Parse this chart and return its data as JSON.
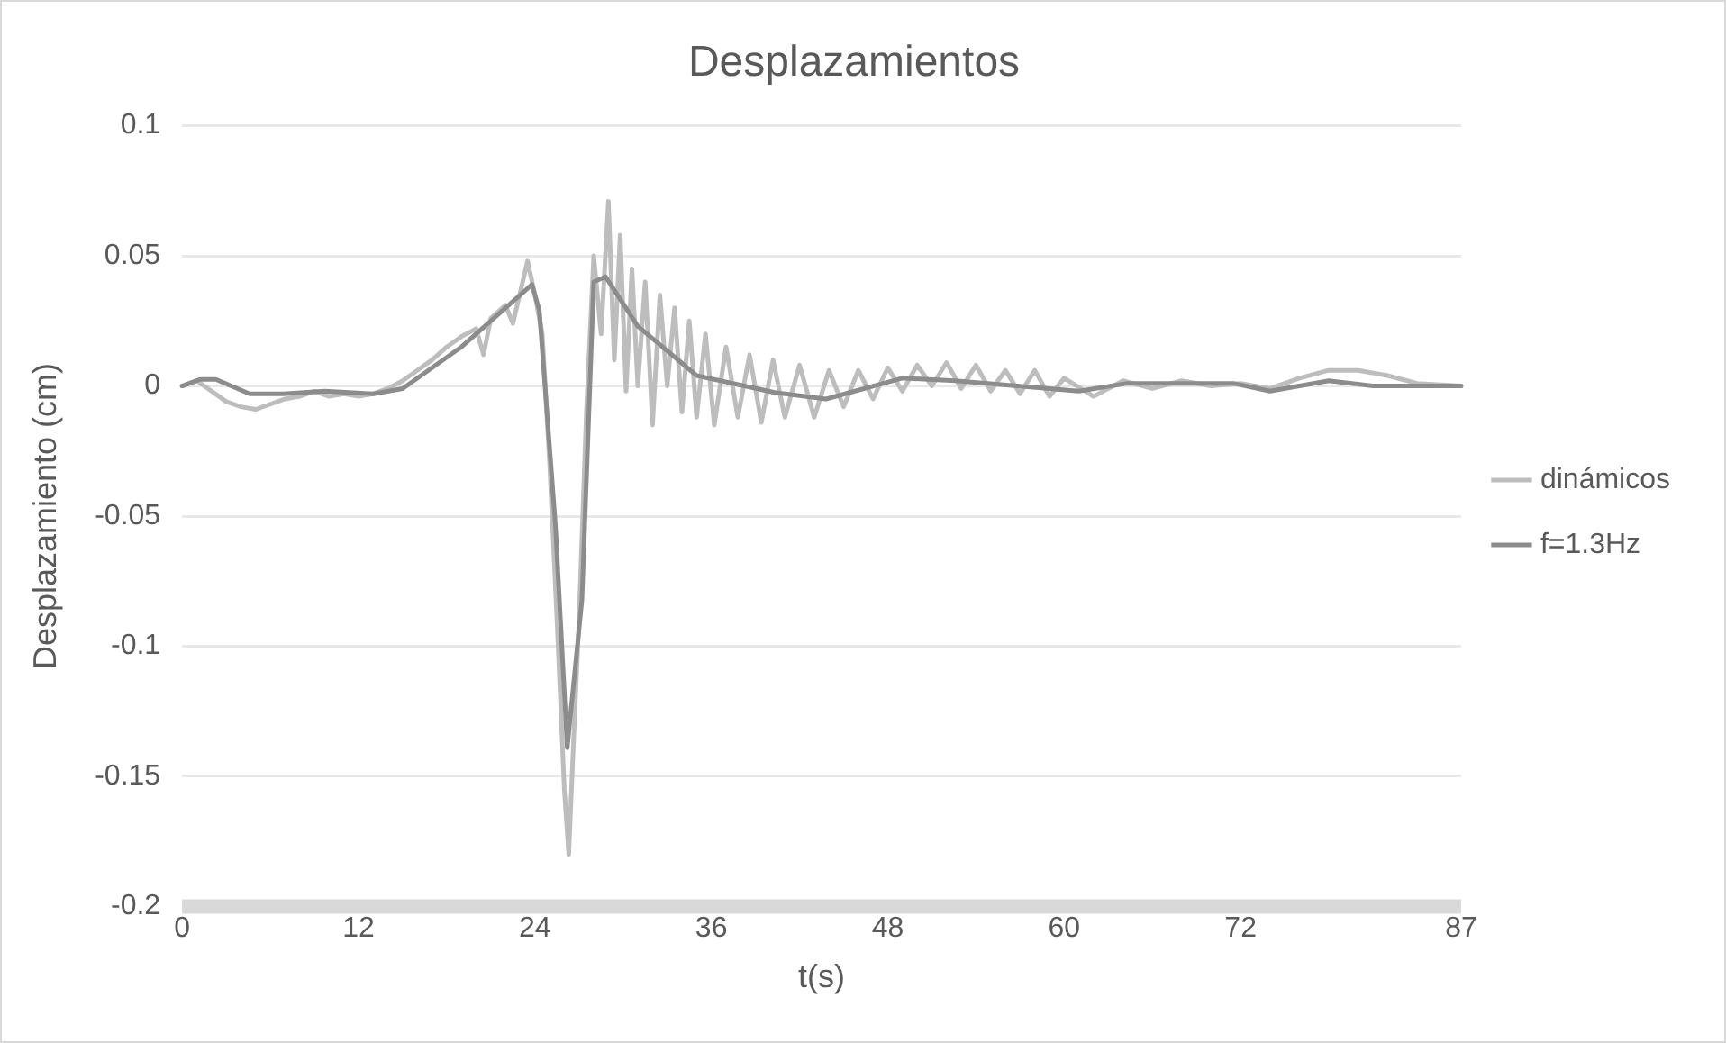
{
  "chart_data": {
    "type": "line",
    "title": "Desplazamientos",
    "xlabel": "t(s)",
    "ylabel": "Desplazamiento (cm)",
    "xlim": [
      0,
      87
    ],
    "xticks": [
      0,
      12,
      24,
      36,
      48,
      60,
      72,
      87
    ],
    "ylim": [
      -0.2,
      0.1
    ],
    "yticks": [
      -0.2,
      -0.15,
      -0.1,
      -0.05,
      0,
      0.05,
      0.1
    ],
    "grid": "y",
    "legend": "right",
    "marker": "none",
    "line_style": "solid",
    "series": [
      {
        "name": "dinámicos",
        "color": "#bdbdbd",
        "x": [
          0,
          1,
          2,
          3,
          4,
          5,
          6,
          7,
          8,
          9,
          10,
          11,
          12,
          13,
          14,
          15,
          16,
          17,
          18,
          19,
          20,
          20.5,
          21,
          22,
          22.5,
          23,
          23.5,
          24,
          24.5,
          25,
          25.5,
          26,
          26.3,
          26.6,
          27,
          27.5,
          28,
          28.5,
          29,
          29.4,
          29.8,
          30.2,
          30.6,
          31,
          31.5,
          32,
          32.5,
          33,
          33.5,
          34,
          34.5,
          35,
          35.6,
          36.2,
          37,
          37.8,
          38.6,
          39.4,
          40.2,
          41,
          42,
          43,
          44,
          45,
          46,
          47,
          48,
          49,
          50,
          51,
          52,
          53,
          54,
          55,
          56,
          57,
          58,
          59,
          60,
          62,
          64,
          66,
          68,
          70,
          72,
          74,
          76,
          78,
          80,
          82,
          84,
          87
        ],
        "values": [
          0,
          0.002,
          -0.002,
          -0.006,
          -0.008,
          -0.009,
          -0.007,
          -0.005,
          -0.004,
          -0.002,
          -0.004,
          -0.003,
          -0.004,
          -0.003,
          -0.001,
          0.002,
          0.006,
          0.01,
          0.015,
          0.019,
          0.022,
          0.012,
          0.026,
          0.031,
          0.024,
          0.036,
          0.048,
          0.035,
          0.02,
          -0.03,
          -0.09,
          -0.155,
          -0.18,
          -0.14,
          -0.09,
          -0.01,
          0.05,
          0.02,
          0.071,
          0.01,
          0.058,
          -0.002,
          0.045,
          0,
          0.04,
          -0.015,
          0.035,
          0,
          0.03,
          -0.01,
          0.025,
          -0.012,
          0.02,
          -0.015,
          0.015,
          -0.012,
          0.012,
          -0.014,
          0.01,
          -0.012,
          0.008,
          -0.012,
          0.006,
          -0.008,
          0.006,
          -0.005,
          0.007,
          -0.002,
          0.008,
          0,
          0.009,
          -0.001,
          0.008,
          -0.002,
          0.006,
          -0.003,
          0.006,
          -0.004,
          0.003,
          -0.004,
          0.002,
          -0.001,
          0.002,
          0,
          0.001,
          -0.001,
          0.003,
          0.006,
          0.006,
          0.004,
          0.001,
          0
        ]
      },
      {
        "name": "f=1.3Hz",
        "color": "#8c8c8c",
        "x": [
          0,
          1.2,
          2.3,
          4.6,
          6.9,
          9.7,
          13,
          15,
          19,
          22,
          23.8,
          24.3,
          25.4,
          26.2,
          27.2,
          28,
          28.8,
          31,
          35,
          40.3,
          43.8,
          49,
          52.6,
          61,
          64.3,
          71.5,
          74,
          78,
          81,
          87
        ],
        "values": [
          0,
          0.0025,
          0.0025,
          -0.003,
          -0.003,
          -0.002,
          -0.003,
          -0.001,
          0.015,
          0.03,
          0.039,
          0.029,
          -0.054,
          -0.139,
          -0.082,
          0.04,
          0.042,
          0.023,
          0.004,
          -0.0025,
          -0.005,
          0.003,
          0.002,
          -0.002,
          0.001,
          0.001,
          -0.002,
          0.002,
          0,
          0
        ]
      }
    ]
  }
}
